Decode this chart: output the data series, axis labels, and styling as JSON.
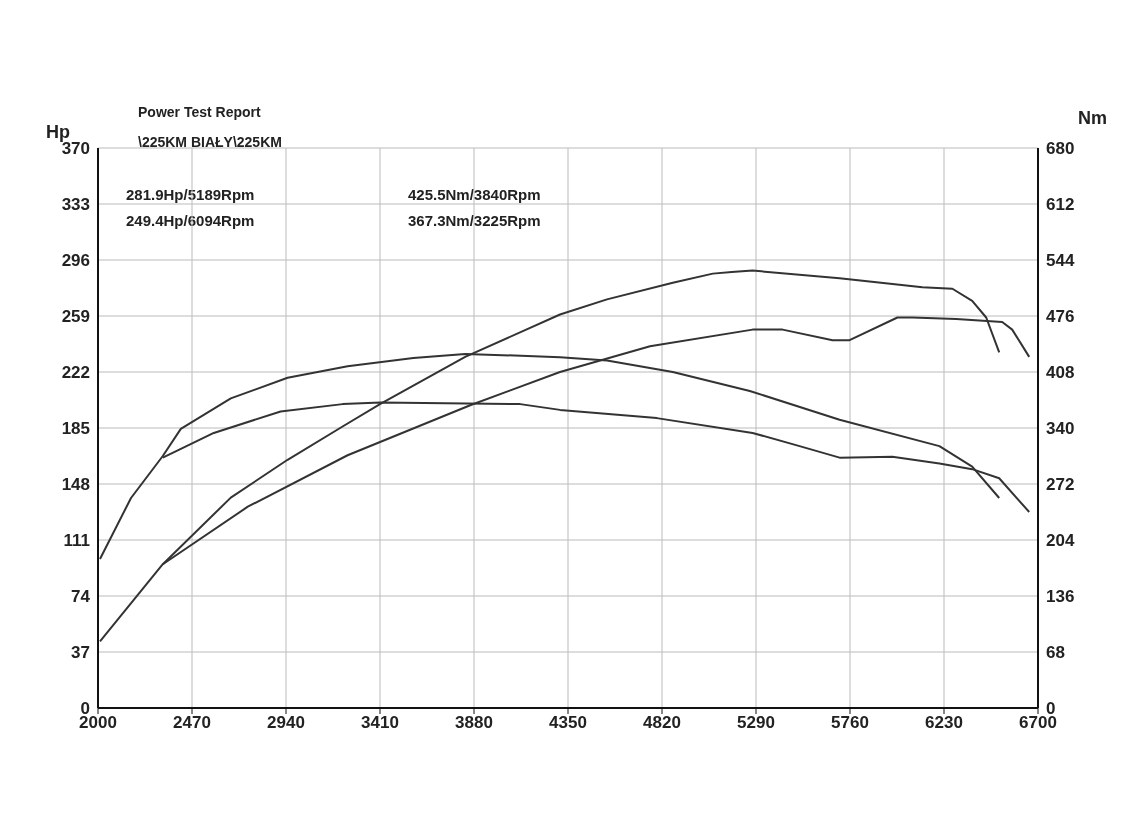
{
  "chart_data": {
    "type": "line",
    "title": "Power Test Report",
    "subtitle": "\\225KM BIAŁY\\225KM",
    "xlabel": null,
    "ylabel": "Hp",
    "y2label": "Nm",
    "annotations": [
      "281.9Hp/5189Rpm",
      "249.4Hp/6094Rpm",
      "425.5Nm/3840Rpm",
      "367.3Nm/3225Rpm"
    ],
    "xlim": [
      2000,
      6700
    ],
    "xticks": [
      2000,
      2470,
      2940,
      3410,
      3880,
      4350,
      4820,
      5290,
      5760,
      6230,
      6700
    ],
    "ylim": [
      0,
      370
    ],
    "yticks": [
      0,
      37,
      74,
      111,
      148,
      185,
      222,
      259,
      296,
      333,
      370
    ],
    "y2lim": [
      0,
      680
    ],
    "y2ticks": [
      0,
      68,
      136,
      204,
      272,
      340,
      408,
      476,
      544,
      612,
      680
    ],
    "grid": true,
    "marker": "none",
    "line_style": "solid",
    "series": [
      {
        "color": "#333333",
        "x": [
          2010,
          2324,
          2664,
          2948,
          3223,
          3412,
          3836,
          4310,
          4545,
          4874,
          5074,
          5169,
          5273,
          5708,
          6122,
          6272,
          6371,
          6441,
          6506
        ],
        "values": [
          44,
          95,
          139,
          164,
          186,
          201,
          232,
          260,
          270,
          281,
          287,
          288,
          289,
          284,
          278,
          277,
          269,
          258,
          235
        ]
      },
      {
        "color": "#333333",
        "x": [
          2324,
          2749,
          3248,
          3861,
          4310,
          4760,
          5273,
          5423,
          5673,
          5758,
          5997,
          6072,
          6291,
          6521,
          6571,
          6656
        ],
        "values": [
          95,
          133,
          167,
          200,
          222,
          239,
          250,
          250,
          243,
          243,
          258,
          258,
          257,
          255,
          250,
          232
        ]
      },
      {
        "color": "#333333",
        "axis": "y2",
        "x": [
          2010,
          2165,
          2324,
          2414,
          2664,
          2948,
          3248,
          3577,
          3836,
          4310,
          4545,
          4874,
          5259,
          5708,
          6207,
          6371,
          6506
        ],
        "values": [
          181,
          255,
          306,
          339,
          376,
          401,
          415,
          425,
          430,
          426,
          422,
          408,
          385,
          350,
          318,
          293,
          255
        ]
      },
      {
        "color": "#333333",
        "axis": "y2",
        "x": [
          2324,
          2579,
          2913,
          3223,
          3412,
          4111,
          4310,
          4794,
          5273,
          5508,
          5708,
          5972,
          6207,
          6371,
          6506,
          6656
        ],
        "values": [
          304,
          334,
          360,
          369,
          371,
          369,
          362,
          352,
          334,
          318,
          304,
          305,
          297,
          290,
          279,
          238
        ]
      }
    ]
  }
}
